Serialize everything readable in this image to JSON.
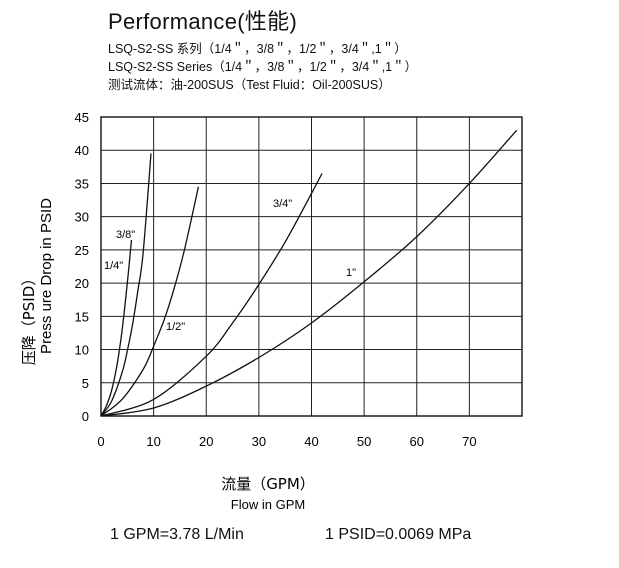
{
  "header": {
    "title": "Performance(性能)",
    "line1": "LSQ-S2-SS 系列（1/4＂，3/8＂，1/2＂，3/4＂,1＂）",
    "line2": "LSQ-S2-SS Series（1/4＂，3/8＂，1/2＂，3/4＂,1＂）",
    "line3": "测试流体：油-200SUS（Test Fluid：Oil-200SUS）"
  },
  "chart_data": {
    "type": "line",
    "xlabel_cn": "流量（GPM）",
    "xlabel_en": "Flow in GPM",
    "ylabel_cn": "压降（PSID）",
    "ylabel_en": "Press ure Drop in PSID",
    "xlim": [
      0,
      80
    ],
    "ylim": [
      0,
      45
    ],
    "x_ticks": [
      0,
      10,
      20,
      30,
      40,
      50,
      60,
      70
    ],
    "y_ticks": [
      0,
      5,
      10,
      15,
      20,
      25,
      30,
      35,
      40,
      45
    ],
    "grid": true,
    "series": [
      {
        "name": "1/4\"",
        "x": [
          0,
          1,
          2,
          3,
          4,
          5,
          5.8
        ],
        "y": [
          0,
          1.5,
          3.8,
          7.5,
          12.8,
          20,
          26.5
        ]
      },
      {
        "name": "3/8\"",
        "x": [
          0,
          2,
          4,
          5,
          6,
          7,
          8,
          9.5
        ],
        "y": [
          0,
          2.2,
          6.5,
          9.8,
          13.8,
          18.8,
          24.5,
          39.5
        ]
      },
      {
        "name": "1/2\"",
        "x": [
          0,
          4,
          8,
          10,
          12,
          14,
          16,
          18.5
        ],
        "y": [
          0,
          2.5,
          7,
          10.5,
          14.5,
          19.5,
          25.5,
          34.5
        ]
      },
      {
        "name": "3/4\"",
        "x": [
          0,
          10,
          20,
          25,
          30,
          35,
          40,
          42
        ],
        "y": [
          0,
          2.5,
          9,
          14,
          19.8,
          26.2,
          33.5,
          36.5
        ]
      },
      {
        "name": "1\"",
        "x": [
          0,
          10,
          20,
          30,
          40,
          50,
          60,
          70,
          79
        ],
        "y": [
          0,
          1.2,
          4.5,
          8.8,
          14,
          20.2,
          27,
          35,
          43
        ]
      }
    ]
  },
  "footer": {
    "conversion1": "1 GPM=3.78 L/Min",
    "conversion2": "1 PSID=0.0069 MPa"
  }
}
